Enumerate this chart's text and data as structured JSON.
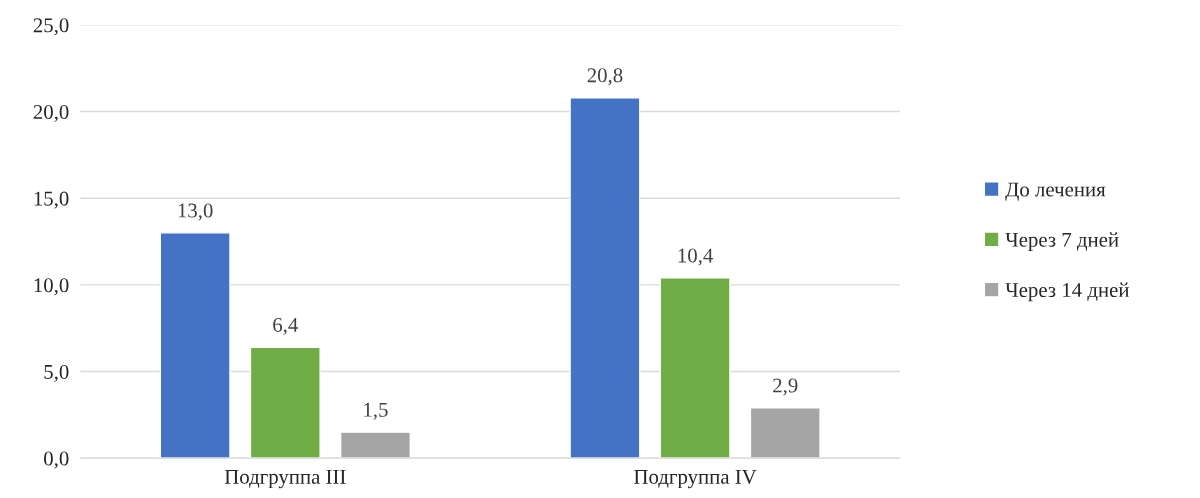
{
  "chart_data": {
    "type": "bar",
    "categories": [
      "Подгруппа III",
      "Подгруппа IV"
    ],
    "series": [
      {
        "name": "До лечения",
        "color": "#4472c4",
        "values": [
          13.0,
          20.8
        ],
        "value_labels": [
          "13,0",
          "20,8"
        ]
      },
      {
        "name": "Через 7 дней",
        "color": "#70ad47",
        "values": [
          6.4,
          10.4
        ],
        "value_labels": [
          "6,4",
          "10,4"
        ]
      },
      {
        "name": "Через 14 дней",
        "color": "#a5a5a5",
        "values": [
          1.5,
          2.9
        ],
        "value_labels": [
          "1,5",
          "2,9"
        ]
      }
    ],
    "ylim": [
      0,
      25
    ],
    "yticks": [
      {
        "value": 0,
        "label": "0,0"
      },
      {
        "value": 5,
        "label": "5,0"
      },
      {
        "value": 10,
        "label": "10,0"
      },
      {
        "value": 15,
        "label": "15,0"
      },
      {
        "value": 20,
        "label": "20,0"
      },
      {
        "value": 25,
        "label": "25,0"
      }
    ],
    "grid": "y",
    "legend": "right"
  }
}
